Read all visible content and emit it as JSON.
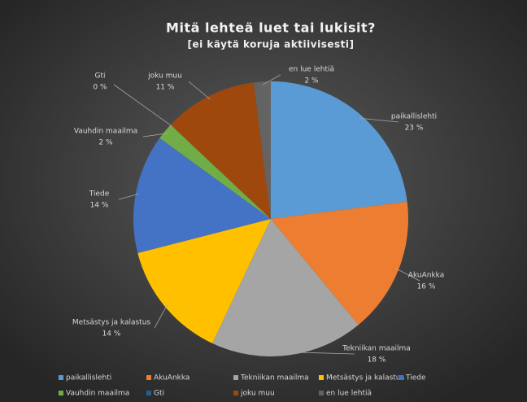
{
  "chart_data": {
    "type": "pie",
    "title": "Mitä lehteä luet tai lukisit?",
    "subtitle": "[ei käytä koruja aktiivisesti]",
    "categories": [
      "paikallislehti",
      "AkuAnkka",
      "Tekniikan maailma",
      "Metsästys ja kalastus",
      "Tiede",
      "Vauhdin maailma",
      "Gti",
      "joku muu",
      "en lue lehtiä"
    ],
    "values": [
      23,
      16,
      18,
      14,
      14,
      2,
      0,
      11,
      2
    ],
    "value_labels": [
      "23 %",
      "16 %",
      "18 %",
      "14 %",
      "14 %",
      "2 %",
      "0 %",
      "11 %",
      "2 %"
    ],
    "colors": [
      "#5b9bd5",
      "#ed7d31",
      "#a5a5a5",
      "#ffc000",
      "#4472c4",
      "#70ad47",
      "#255e91",
      "#9e480e",
      "#636363"
    ]
  }
}
